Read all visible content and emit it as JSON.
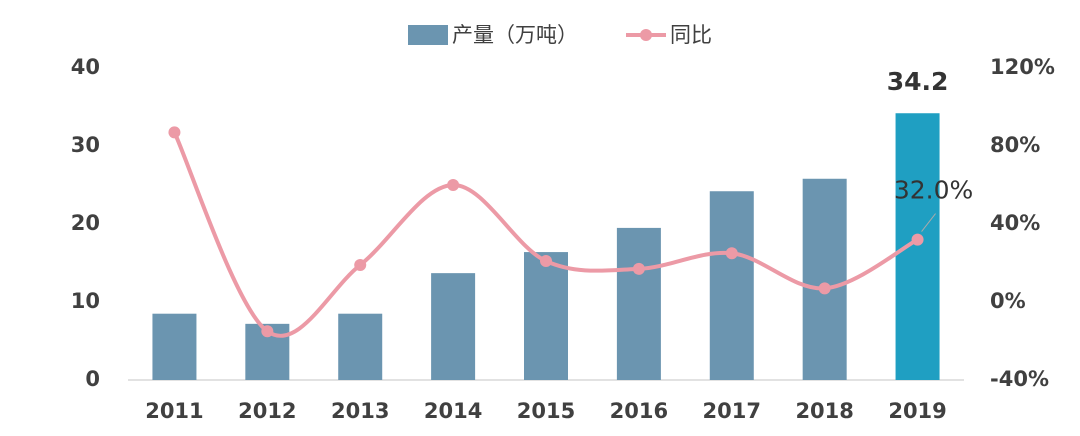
{
  "chart_data": {
    "type": "bar-line",
    "categories": [
      "2011",
      "2012",
      "2013",
      "2014",
      "2015",
      "2016",
      "2017",
      "2018",
      "2019"
    ],
    "series": [
      {
        "name": "产量（万吨）",
        "type": "bar",
        "color": "#6b95b0",
        "colors": [
          "#6b95b0",
          "#6b95b0",
          "#6b95b0",
          "#6b95b0",
          "#6b95b0",
          "#6b95b0",
          "#6b95b0",
          "#6b95b0",
          "#1f9fc2"
        ],
        "values": [
          8.5,
          7.2,
          8.5,
          13.7,
          16.4,
          19.5,
          24.2,
          25.8,
          34.2
        ],
        "labeled": [
          false,
          false,
          false,
          false,
          false,
          false,
          false,
          false,
          true
        ]
      },
      {
        "name": "同比",
        "type": "line",
        "axis": "y2",
        "color": "#ec9aa6",
        "values": [
          87,
          -15,
          19,
          60,
          21,
          17,
          25,
          7,
          32.0
        ],
        "value_labels": [
          null,
          null,
          null,
          null,
          null,
          null,
          null,
          null,
          "32.0%"
        ]
      }
    ],
    "ylim": [
      0,
      40
    ],
    "yticks": [
      0,
      10,
      20,
      30,
      40
    ],
    "y2lim": [
      -40,
      120
    ],
    "y2ticks": [
      {
        "value": -40,
        "label": "-40%"
      },
      {
        "value": 0,
        "label": "0%"
      },
      {
        "value": 40,
        "label": "40%"
      },
      {
        "value": 80,
        "label": "80%"
      },
      {
        "value": 120,
        "label": "120%"
      }
    ],
    "grid": false,
    "legend": "top"
  }
}
